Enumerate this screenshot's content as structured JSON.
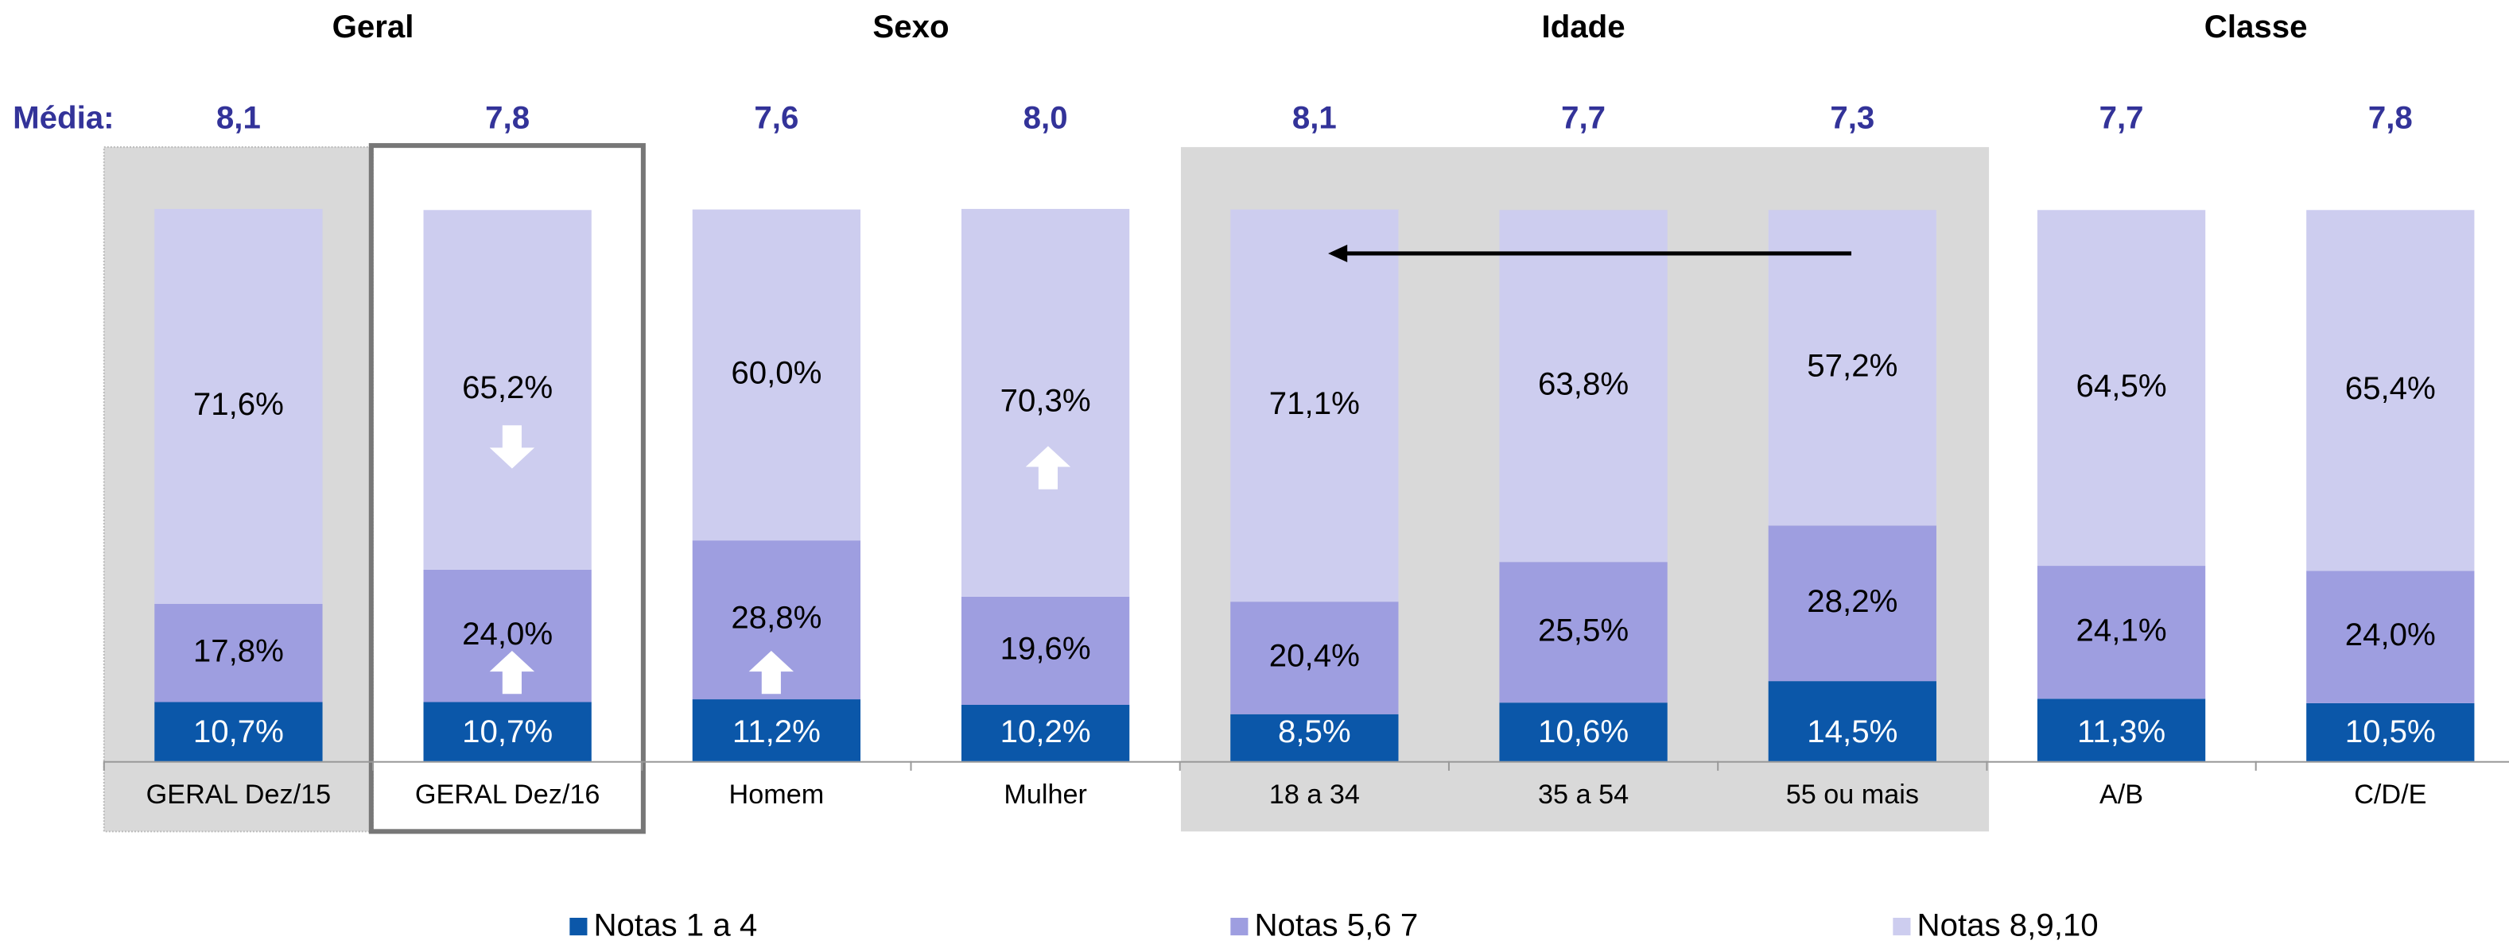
{
  "chart_data": {
    "type": "bar",
    "stacked": true,
    "groups": [
      {
        "label": "Geral",
        "span": 2
      },
      {
        "label": "Sexo",
        "span": 2
      },
      {
        "label": "Idade",
        "span": 3
      },
      {
        "label": "Classe",
        "span": 2
      }
    ],
    "averages_label": "Média:",
    "averages": [
      8.1,
      7.8,
      7.6,
      8.0,
      8.1,
      7.7,
      7.3,
      7.7,
      7.8
    ],
    "average_labels": [
      "8,1",
      "7,8",
      "7,6",
      "8,0",
      "8,1",
      "7,7",
      "7,3",
      "7,7",
      "7,8"
    ],
    "categories": [
      "GERAL Dez/15",
      "GERAL Dez/16",
      "Homem",
      "Mulher",
      "18 a 34",
      "35 a 54",
      "55 ou mais",
      "A/B",
      "C/D/E"
    ],
    "series": [
      {
        "name": "Notas 1 a 4",
        "color": "#0b57a9",
        "label_color": "#ffffff",
        "values": [
          10.7,
          10.7,
          11.2,
          10.2,
          8.5,
          10.6,
          14.5,
          11.3,
          10.5
        ],
        "value_labels": [
          "10,7%",
          "10,7%",
          "11,2%",
          "10,2%",
          "8,5%",
          "10,6%",
          "14,5%",
          "11,3%",
          "10,5%"
        ]
      },
      {
        "name": "Notas 5,6 7",
        "color": "#9e9ee0",
        "label_color": "#000000",
        "values": [
          17.8,
          24.0,
          28.8,
          19.6,
          20.4,
          25.5,
          28.2,
          24.1,
          24.0
        ],
        "value_labels": [
          "17,8%",
          "24,0%",
          "28,8%",
          "19,6%",
          "20,4%",
          "25,5%",
          "28,2%",
          "24,1%",
          "24,0%"
        ]
      },
      {
        "name": "Notas 8,9,10",
        "color": "#cdcdef",
        "label_color": "#000000",
        "values": [
          71.6,
          65.2,
          60.0,
          70.3,
          71.1,
          63.8,
          57.2,
          64.5,
          65.4
        ],
        "value_labels": [
          "71,6%",
          "65,2%",
          "60,0%",
          "70,3%",
          "71,1%",
          "63,8%",
          "57,2%",
          "64,5%",
          "65,4%"
        ]
      }
    ],
    "ylim": [
      0,
      100
    ]
  }
}
